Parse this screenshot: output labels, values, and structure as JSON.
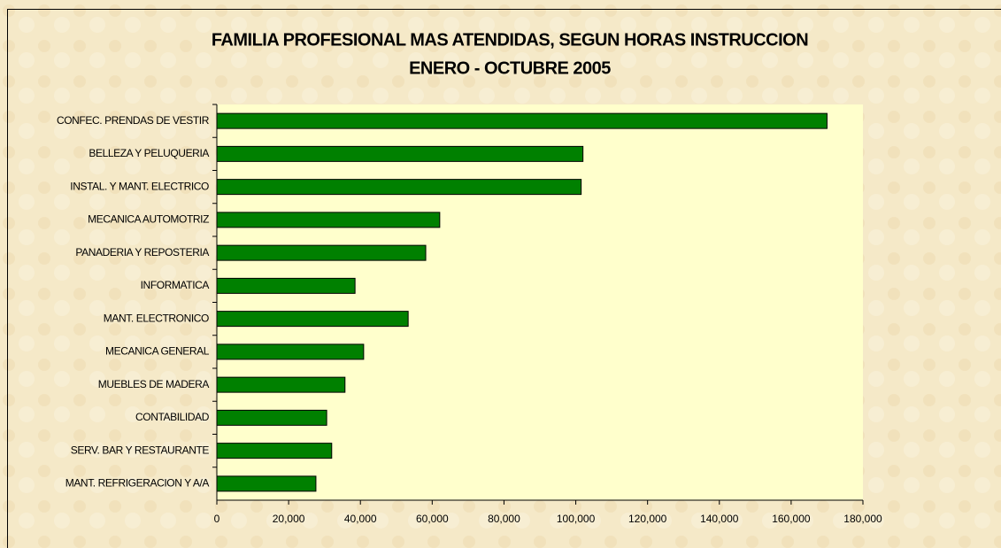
{
  "chart_data": {
    "type": "bar",
    "orientation": "horizontal",
    "title": "FAMILIA PROFESIONAL MAS ATENDIDAS, SEGUN HORAS INSTRUCCION",
    "subtitle": "ENERO - OCTUBRE 2005",
    "categories": [
      "CONFEC. PRENDAS DE VESTIR",
      "BELLEZA Y PELUQUERIA",
      "INSTAL. Y MANT. ELECTRICO",
      "MECANICA AUTOMOTRIZ",
      "PANADERIA Y REPOSTERIA",
      "INFORMATICA",
      "MANT. ELECTRONICO",
      "MECANICA GENERAL",
      "MUEBLES DE MADERA",
      "CONTABILIDAD",
      "SERV. BAR Y RESTAURANTE",
      "MANT. REFRIGERACION Y A/A"
    ],
    "values": [
      170000,
      102000,
      101500,
      62100,
      58200,
      38500,
      53300,
      40900,
      35700,
      30600,
      32000,
      27600
    ],
    "color": "#008000",
    "xlim": [
      0,
      180000
    ],
    "xticks": [
      0,
      {
        "value": 20000,
        "label": "20,000"
      },
      {
        "value": 40000,
        "label": "40,000"
      },
      {
        "value": 60000,
        "label": "60,000"
      },
      {
        "value": 80000,
        "label": "80,000"
      },
      {
        "value": 100000,
        "label": "100,000"
      },
      {
        "value": 120000,
        "label": "120,000"
      },
      {
        "value": 140000,
        "label": "140,000"
      },
      {
        "value": 160000,
        "label": "160,000"
      },
      {
        "value": 180000,
        "label": "180,000"
      }
    ],
    "grid": false
  }
}
